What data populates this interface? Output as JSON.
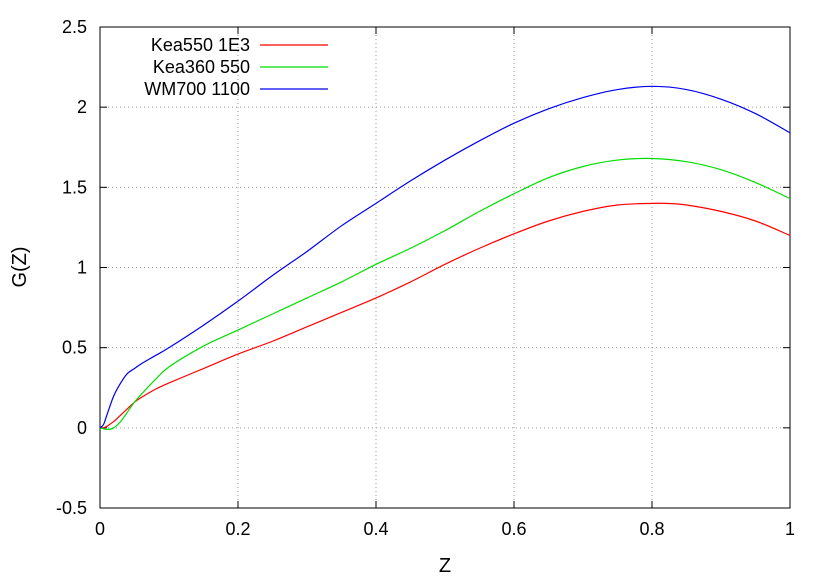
{
  "chart_data": {
    "type": "line",
    "xlabel": "Z",
    "ylabel": "G(Z)",
    "xlim": [
      0,
      1
    ],
    "ylim": [
      -0.5,
      2.5
    ],
    "x_ticks": [
      0,
      0.2,
      0.4,
      0.6,
      0.8,
      1
    ],
    "x_tick_labels": [
      "0",
      "0.2",
      "0.4",
      "0.6",
      "0.8",
      "1"
    ],
    "y_ticks": [
      -0.5,
      0,
      0.5,
      1,
      1.5,
      2,
      2.5
    ],
    "y_tick_labels": [
      "-0.5",
      "0",
      "0.5",
      "1",
      "1.5",
      "2",
      "2.5"
    ],
    "grid": true,
    "legend_position": "top-left",
    "series": [
      {
        "name": "Kea550 1E3",
        "color": "#ff0000",
        "points": [
          [
            0,
            0
          ],
          [
            0.005,
            0.0
          ],
          [
            0.01,
            0.01
          ],
          [
            0.02,
            0.04
          ],
          [
            0.03,
            0.08
          ],
          [
            0.04,
            0.12
          ],
          [
            0.05,
            0.16
          ],
          [
            0.06,
            0.19
          ],
          [
            0.08,
            0.24
          ],
          [
            0.1,
            0.28
          ],
          [
            0.15,
            0.37
          ],
          [
            0.2,
            0.46
          ],
          [
            0.25,
            0.54
          ],
          [
            0.3,
            0.63
          ],
          [
            0.35,
            0.72
          ],
          [
            0.4,
            0.81
          ],
          [
            0.45,
            0.91
          ],
          [
            0.5,
            1.02
          ],
          [
            0.55,
            1.12
          ],
          [
            0.6,
            1.21
          ],
          [
            0.65,
            1.29
          ],
          [
            0.7,
            1.35
          ],
          [
            0.75,
            1.39
          ],
          [
            0.8,
            1.4
          ],
          [
            0.82,
            1.4
          ],
          [
            0.85,
            1.39
          ],
          [
            0.9,
            1.35
          ],
          [
            0.95,
            1.29
          ],
          [
            1.0,
            1.2
          ]
        ]
      },
      {
        "name": "Kea360 550",
        "color": "#00dd00",
        "points": [
          [
            0,
            0
          ],
          [
            0.01,
            -0.01
          ],
          [
            0.02,
            0.0
          ],
          [
            0.03,
            0.04
          ],
          [
            0.04,
            0.1
          ],
          [
            0.05,
            0.16
          ],
          [
            0.06,
            0.21
          ],
          [
            0.08,
            0.3
          ],
          [
            0.1,
            0.38
          ],
          [
            0.15,
            0.51
          ],
          [
            0.2,
            0.61
          ],
          [
            0.25,
            0.71
          ],
          [
            0.3,
            0.81
          ],
          [
            0.35,
            0.91
          ],
          [
            0.4,
            1.02
          ],
          [
            0.45,
            1.12
          ],
          [
            0.5,
            1.23
          ],
          [
            0.55,
            1.35
          ],
          [
            0.6,
            1.46
          ],
          [
            0.65,
            1.56
          ],
          [
            0.7,
            1.63
          ],
          [
            0.75,
            1.67
          ],
          [
            0.8,
            1.68
          ],
          [
            0.85,
            1.66
          ],
          [
            0.9,
            1.61
          ],
          [
            0.95,
            1.53
          ],
          [
            1.0,
            1.43
          ]
        ]
      },
      {
        "name": "WM700 1100",
        "color": "#0000ee",
        "points": [
          [
            0,
            0
          ],
          [
            0.005,
            0.02
          ],
          [
            0.01,
            0.08
          ],
          [
            0.02,
            0.2
          ],
          [
            0.03,
            0.28
          ],
          [
            0.04,
            0.34
          ],
          [
            0.05,
            0.37
          ],
          [
            0.06,
            0.4
          ],
          [
            0.08,
            0.45
          ],
          [
            0.1,
            0.5
          ],
          [
            0.15,
            0.64
          ],
          [
            0.2,
            0.79
          ],
          [
            0.25,
            0.95
          ],
          [
            0.3,
            1.1
          ],
          [
            0.35,
            1.26
          ],
          [
            0.4,
            1.4
          ],
          [
            0.45,
            1.54
          ],
          [
            0.5,
            1.67
          ],
          [
            0.55,
            1.79
          ],
          [
            0.6,
            1.9
          ],
          [
            0.65,
            1.99
          ],
          [
            0.7,
            2.06
          ],
          [
            0.75,
            2.11
          ],
          [
            0.8,
            2.13
          ],
          [
            0.85,
            2.11
          ],
          [
            0.9,
            2.05
          ],
          [
            0.95,
            1.96
          ],
          [
            1.0,
            1.84
          ]
        ]
      }
    ]
  }
}
